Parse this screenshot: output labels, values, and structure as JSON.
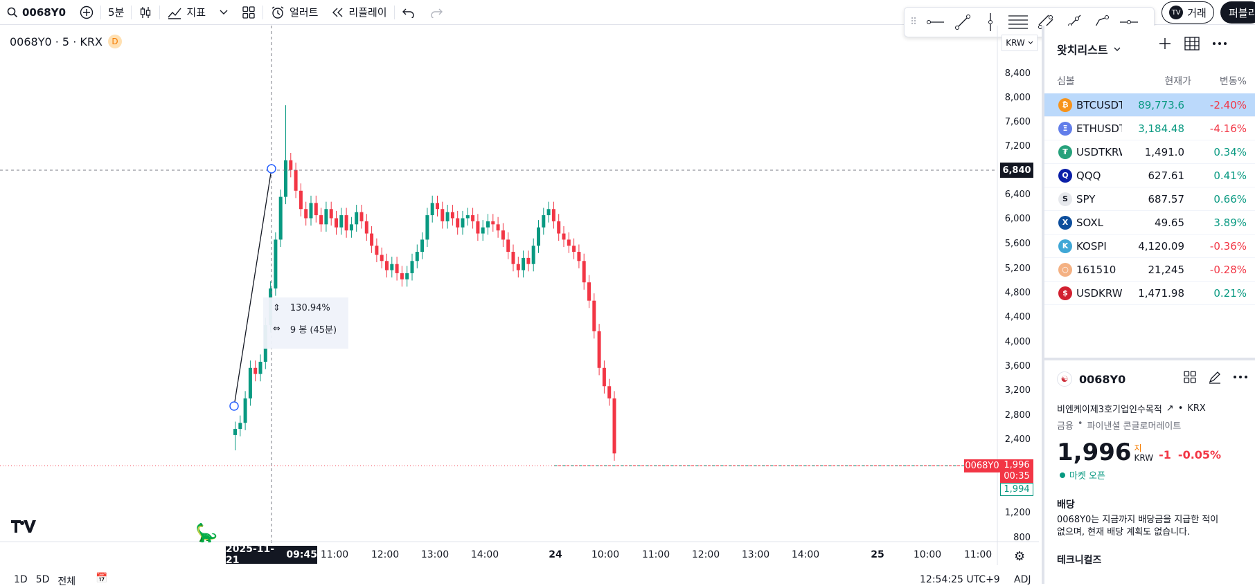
{
  "toolbar": {
    "symbol": "0068Y0",
    "interval": "5분",
    "indicators": "지표",
    "alert": "얼러트",
    "replay": "리플레이",
    "trade": "거래",
    "publish": "퍼블리"
  },
  "chart": {
    "legend": "0068Y0 · 5 · KRX",
    "legend_badge": "D",
    "currency": "KRW",
    "y_ticks": [
      "8,400",
      "8,000",
      "7,600",
      "7,200",
      "6,400",
      "6,000",
      "5,600",
      "5,200",
      "4,800",
      "4,400",
      "4,000",
      "3,600",
      "3,200",
      "2,800",
      "2,400",
      "1,200",
      "800"
    ],
    "x_ticks": [
      "11:00",
      "12:00",
      "13:00",
      "14:00",
      "24",
      "10:00",
      "11:00",
      "12:00",
      "13:00",
      "14:00",
      "25",
      "10:00",
      "11:00"
    ],
    "crosshair_date": "2025-11-21",
    "crosshair_time": "09:45",
    "crosshair_price": "6,840",
    "last_label": "0068Y0",
    "last_price": "1,996",
    "countdown": "00:35",
    "prev_price": "1,994",
    "measure_pct": "130.94%",
    "measure_bars": "9 봉 (45분)",
    "colors": {
      "up": "#089981",
      "down": "#f23645"
    }
  },
  "bottom": {
    "ranges": [
      "1D",
      "5D",
      "전체"
    ],
    "clock": "12:54:25 UTC+9",
    "adj": "ADJ"
  },
  "watchlist": {
    "title": "왓치리스트",
    "col_symbol": "심볼",
    "col_last": "현재가",
    "col_change": "변동%",
    "rows": [
      {
        "symbol": "BTCUSDT",
        "last": "89,773.6",
        "change": "-2.40%",
        "icon_color": "#f7931a",
        "icon": "₿"
      },
      {
        "symbol": "ETHUSDT",
        "last": "3,184.48",
        "change": "-4.16%",
        "icon_color": "#627eea",
        "icon": "Ξ"
      },
      {
        "symbol": "USDTKRW",
        "last": "1,491.0",
        "change": "0.34%",
        "icon_color": "#26a17b",
        "icon": "₮"
      },
      {
        "symbol": "QQQ",
        "last": "627.61",
        "change": "0.41%",
        "icon_color": "#0b1fa8",
        "icon": "Q"
      },
      {
        "symbol": "SPY",
        "last": "687.57",
        "change": "0.66%",
        "icon_color": "#e6e8ec",
        "icon": "S"
      },
      {
        "symbol": "SOXL",
        "last": "49.65",
        "change": "3.89%",
        "icon_color": "#0d4e9c",
        "icon": "X"
      },
      {
        "symbol": "KOSPI",
        "last": "4,120.09",
        "change": "-0.36%",
        "icon_color": "#3fa7d6",
        "icon": "K"
      },
      {
        "symbol": "161510",
        "last": "21,245",
        "change": "-0.28%",
        "icon_color": "#f4b183",
        "icon": "○"
      },
      {
        "symbol": "USDKRW",
        "last": "1,471.98",
        "change": "0.21%",
        "icon_color": "#d22030",
        "icon": "$"
      }
    ]
  },
  "detail": {
    "symbol": "0068Y0",
    "name": "비엔케이제3호기업인수목적",
    "exchange": "KRX",
    "sector": "금융",
    "industry": "파이낸셜 콘글로머레이트",
    "price": "1,996",
    "price_sup": "지",
    "currency": "KRW",
    "change": "-1",
    "change_pct": "-0.05%",
    "market_status": "마켓 오픈",
    "dividend_title": "배당",
    "dividend_text": "0068Y0는 지금까지 배당금을 지급한 적이 없으며, 현재 배당 계획도 없습니다.",
    "technicals_title": "테크니컬즈"
  }
}
